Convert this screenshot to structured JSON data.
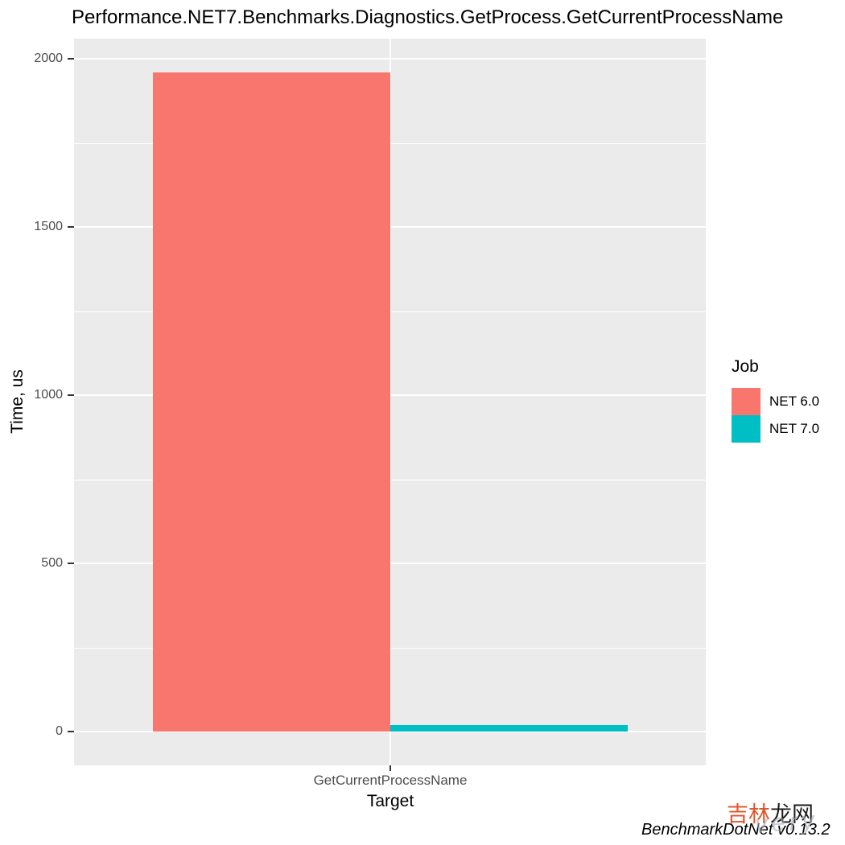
{
  "chart_data": {
    "type": "bar",
    "title": "Performance.NET7.Benchmarks.Diagnostics.GetProcess.GetCurrentProcessName",
    "xlabel": "Target",
    "ylabel": "Time, us",
    "categories": [
      "GetCurrentProcessName"
    ],
    "series": [
      {
        "name": "NET 6.0",
        "color": "#F8766D",
        "values": [
          1960
        ]
      },
      {
        "name": "NET 7.0",
        "color": "#00BFC4",
        "values": [
          18
        ]
      }
    ],
    "ylim": [
      0,
      2000
    ],
    "yticks": [
      0,
      500,
      1000,
      1500,
      2000
    ],
    "yticks_minor": [
      250,
      750,
      1250,
      1750
    ],
    "grid": true,
    "legend": {
      "title": "Job",
      "position": "right"
    },
    "colors": {
      "panel_bg": "#EBEBEB",
      "grid": "#FFFFFF",
      "tick_text": "#4D4D4D",
      "axis_text": "#000000",
      "tick_mark": "#333333"
    }
  },
  "footer": {
    "site_mark": {
      "highlight": "吉林",
      "rest": "龙网",
      "highlight_color": "#E2552B",
      "rest_color": "#1A1A1A"
    },
    "credit": "BenchmarkDotNet v0.13.2",
    "faint_overlay": "very"
  }
}
